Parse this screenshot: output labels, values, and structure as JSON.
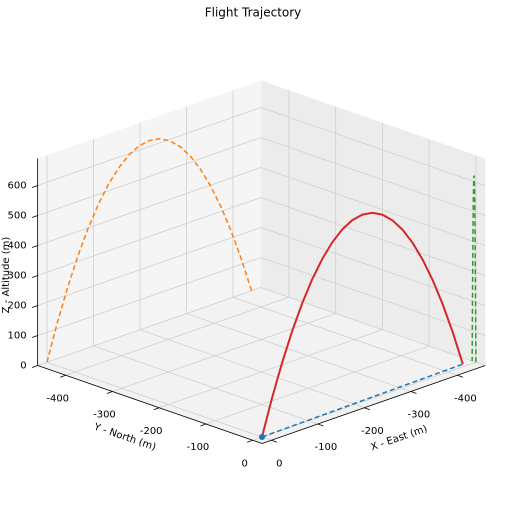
{
  "chart_data": {
    "type": "line3d",
    "title": "Flight Trajectory",
    "xlabel": "X - East (m)",
    "ylabel": "Y - North (m)",
    "zlabel": "Z - Altitude (m)",
    "xlim": [
      -460,
      20
    ],
    "ylim": [
      -460,
      20
    ],
    "zlim": [
      0,
      690
    ],
    "xticks": [
      0,
      -100,
      -200,
      -300,
      -400
    ],
    "yticks": [
      0,
      -100,
      -200,
      -300,
      -400
    ],
    "zticks": [
      0,
      100,
      200,
      300,
      400,
      500,
      600
    ],
    "grid": true,
    "series": [
      {
        "color": "#d62728",
        "x": [
          0,
          -22,
          -44,
          -66,
          -88,
          -110,
          -132,
          -154,
          -176,
          -198,
          -220,
          -242,
          -264,
          -286,
          -308,
          -330,
          -352,
          -374,
          -396,
          -418,
          -440
        ],
        "y": [
          0,
          -0.4,
          -0.8,
          -1.2,
          -1.6,
          -2,
          -2.4,
          -2.8,
          -3.2,
          -3.6,
          -4,
          -4.4,
          -4.8,
          -5.2,
          -5.6,
          -6,
          -6.4,
          -6.8,
          -7.2,
          -7.6,
          -8
        ],
        "z": [
          0,
          117.8,
          223.2,
          316.2,
          396.8,
          465,
          520.8,
          564.2,
          595.2,
          613.8,
          620,
          613.8,
          595.2,
          564.2,
          520.8,
          465,
          396.8,
          316.2,
          223.2,
          117.8,
          0
        ]
      }
    ],
    "projections": [
      {
        "plane": "floor",
        "color": "#1f77b4"
      },
      {
        "plane": "y-wall",
        "color": "#ff7f0e"
      },
      {
        "plane": "x-wall",
        "color": "#2ca02c"
      }
    ],
    "start_color": "#1f77b4"
  }
}
